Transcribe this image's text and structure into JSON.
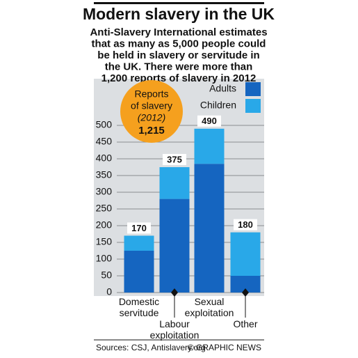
{
  "chart_data": {
    "type": "stacked_bar",
    "title": "Modern slavery in the UK",
    "subtitle": [
      "Anti-Slavery International estimates",
      "that as many as 5,000 people could",
      "be held in slavery or servitude in",
      "the UK. There were more than",
      "1,200 reports of slavery in 2012"
    ],
    "categories": [
      "Domestic servitude",
      "Labour exploitation",
      "Sexual exploitation",
      "Other"
    ],
    "series": [
      {
        "name": "Adults",
        "color": "#1565c0",
        "values": [
          125,
          280,
          385,
          50
        ]
      },
      {
        "name": "Children",
        "color": "#29a8e8",
        "values": [
          45,
          95,
          105,
          130
        ]
      }
    ],
    "totals": [
      170,
      375,
      490,
      180
    ],
    "ylim": [
      0,
      500
    ],
    "yticks": [
      0,
      50,
      100,
      150,
      200,
      250,
      300,
      350,
      400,
      450,
      500
    ],
    "grid": true,
    "annotation": {
      "lines": [
        "Reports",
        "of slavery"
      ],
      "year": "(2012)",
      "value": "1,215",
      "color": "#f5a01e"
    },
    "source": "Sources: CSJ, Antislavery.org",
    "credit": "© GRAPHIC NEWS"
  }
}
